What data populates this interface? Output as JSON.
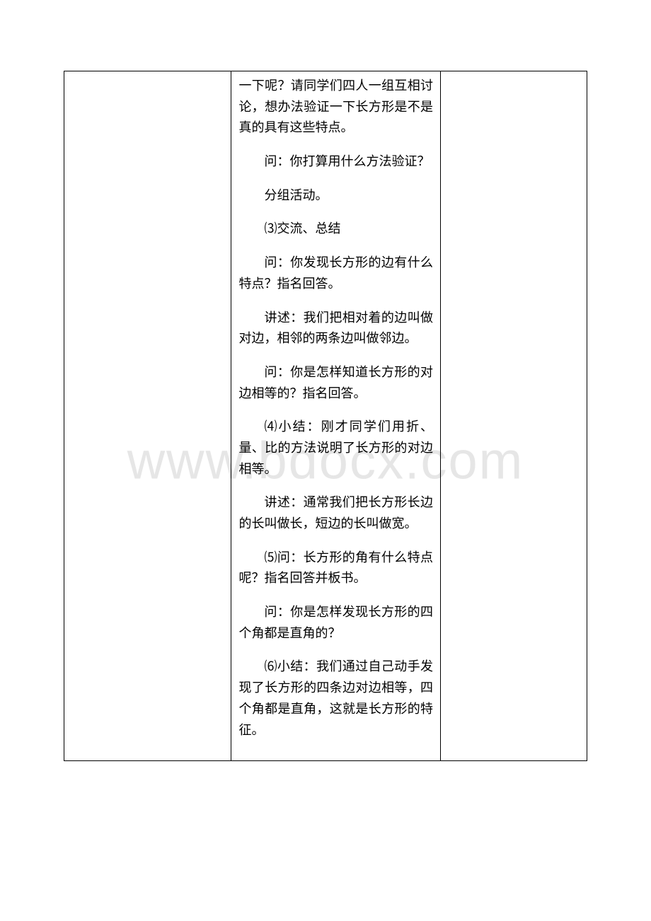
{
  "watermark": "www.bdocx.com",
  "middle": {
    "p1": "一下呢？请同学们四人一组互相讨论，想办法验证一下长方形是不是真的具有这些特点。",
    "p2": "问：你打算用什么方法验证？",
    "p3": "分组活动。",
    "p4": "⑶交流、总结",
    "p5": "问：你发现长方形的边有什么特点？指名回答。",
    "p6": "讲述：我们把相对着的边叫做对边，相邻的两条边叫做邻边。",
    "p7": "问：你是怎样知道长方形的对边相等的？指名回答。",
    "p8": "⑷小结：刚才同学们用折、量、比的方法说明了长方形的对边相等。",
    "p9": "讲述：通常我们把长方形长边的长叫做长，短边的长叫做宽。",
    "p10": "⑸问：长方形的角有什么特点呢？指名回答并板书。",
    "p11": "问：你是怎样发现长方形的四个角都是直角的？",
    "p12": "⑹小结：我们通过自己动手发现了长方形的四条边对边相等，四个角都是直角，这就是长方形的特征。"
  }
}
